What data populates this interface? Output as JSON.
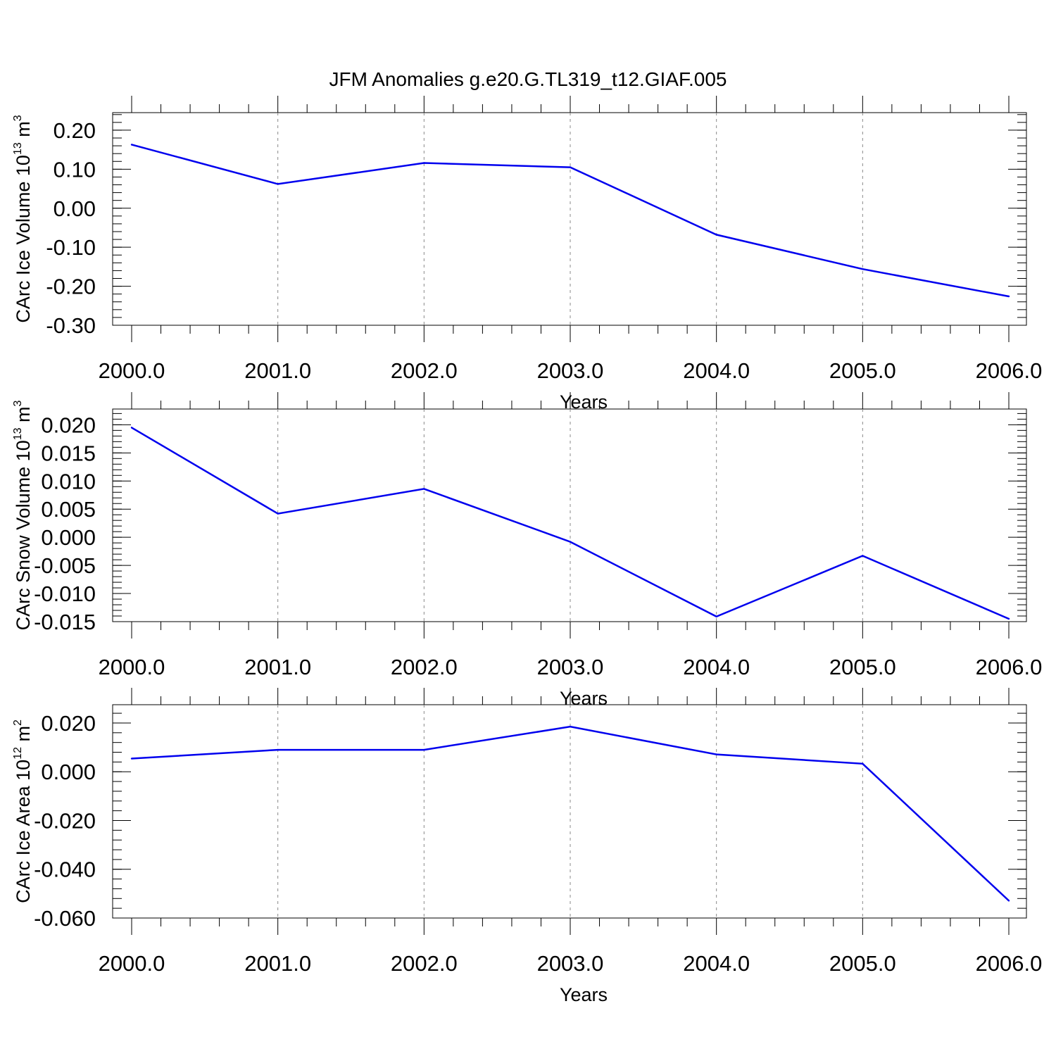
{
  "title": "JFM Anomalies g.e20.G.TL319_t12.GIAF.005",
  "colors": {
    "line": "#0000ee",
    "axis": "#000000",
    "grid": "#888888"
  },
  "chart_data": [
    {
      "type": "line",
      "xlabel": "Years",
      "ylabel": {
        "prefix": "CArc Ice Volume 10",
        "exponent": "13",
        "unit": " m",
        "unit_exponent": "3"
      },
      "xlim": [
        2000,
        2006
      ],
      "ylim": [
        -0.3,
        0.245
      ],
      "x_ticks": [
        2000,
        2001,
        2002,
        2003,
        2004,
        2005,
        2006
      ],
      "x_tick_labels": [
        "2000.0",
        "2001.0",
        "2002.0",
        "2003.0",
        "2004.0",
        "2005.0",
        "2006.0"
      ],
      "y_ticks": [
        0.2,
        0.1,
        0.0,
        -0.1,
        -0.2,
        -0.3
      ],
      "y_tick_labels": [
        "0.20",
        "0.10",
        "0.00",
        "-0.10",
        "-0.20",
        "-0.30"
      ],
      "grid": "vertical dashed",
      "x": [
        2000,
        2001,
        2002,
        2003,
        2004,
        2005,
        2006
      ],
      "values": [
        0.163,
        0.062,
        0.116,
        0.105,
        -0.068,
        -0.156,
        -0.226
      ]
    },
    {
      "type": "line",
      "xlabel": "Years",
      "ylabel": {
        "prefix": "CArc Snow Volume 10",
        "exponent": "13",
        "unit": " m",
        "unit_exponent": "3"
      },
      "xlim": [
        2000,
        2006
      ],
      "ylim": [
        -0.015,
        0.0228
      ],
      "x_ticks": [
        2000,
        2001,
        2002,
        2003,
        2004,
        2005,
        2006
      ],
      "x_tick_labels": [
        "2000.0",
        "2001.0",
        "2002.0",
        "2003.0",
        "2004.0",
        "2005.0",
        "2006.0"
      ],
      "y_ticks": [
        0.02,
        0.015,
        0.01,
        0.005,
        0.0,
        -0.005,
        -0.01,
        -0.015
      ],
      "y_tick_labels": [
        "0.020",
        "0.015",
        "0.010",
        "0.005",
        "0.000",
        "-0.005",
        "-0.010",
        "-0.015"
      ],
      "grid": "vertical dashed",
      "x": [
        2000,
        2001,
        2002,
        2003,
        2004,
        2005,
        2006
      ],
      "values": [
        0.0195,
        0.0042,
        0.0086,
        -0.0008,
        -0.0141,
        -0.0033,
        -0.0145
      ]
    },
    {
      "type": "line",
      "xlabel": "Years",
      "ylabel": {
        "prefix": "CArc Ice Area 10",
        "exponent": "12",
        "unit": " m",
        "unit_exponent": "2"
      },
      "xlim": [
        2000,
        2006
      ],
      "ylim": [
        -0.06,
        0.0275
      ],
      "x_ticks": [
        2000,
        2001,
        2002,
        2003,
        2004,
        2005,
        2006
      ],
      "x_tick_labels": [
        "2000.0",
        "2001.0",
        "2002.0",
        "2003.0",
        "2004.0",
        "2005.0",
        "2006.0"
      ],
      "y_ticks": [
        0.02,
        0.0,
        -0.02,
        -0.04,
        -0.06
      ],
      "y_tick_labels": [
        "0.020",
        "0.000",
        "-0.020",
        "-0.040",
        "-0.060"
      ],
      "grid": "vertical dashed",
      "x": [
        2000,
        2001,
        2002,
        2003,
        2004,
        2005,
        2006
      ],
      "values": [
        0.0054,
        0.009,
        0.009,
        0.0185,
        0.0071,
        0.0033,
        -0.0529
      ]
    }
  ]
}
